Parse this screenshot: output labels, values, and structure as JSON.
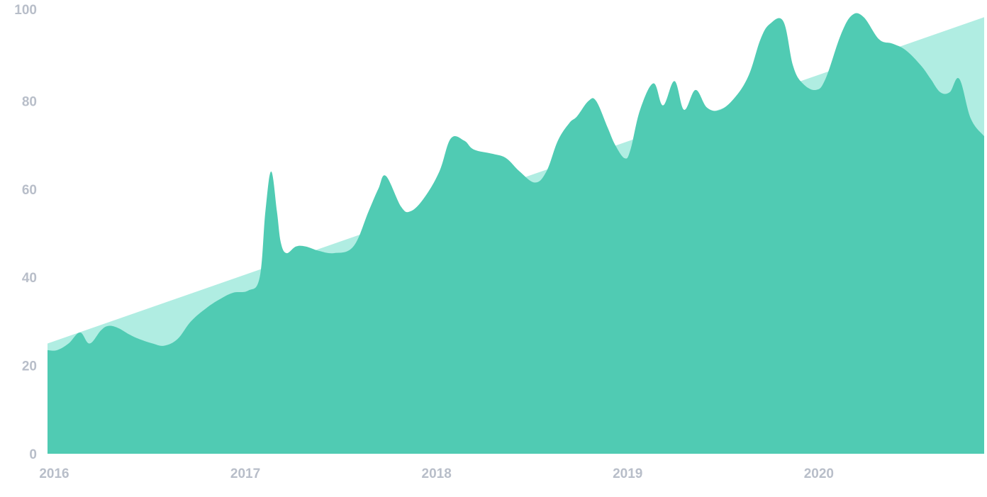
{
  "chart_data": {
    "type": "area",
    "title": "",
    "xlabel": "",
    "ylabel": "",
    "ylim": [
      0,
      100
    ],
    "xlim": [
      2015.95,
      2020.85
    ],
    "y_ticks": [
      "0",
      "20",
      "40",
      "60",
      "80",
      "100"
    ],
    "x_ticks": [
      "2016",
      "2017",
      "2018",
      "2019",
      "2020"
    ],
    "grid": false,
    "legend": "none",
    "colors": {
      "trend_area": "#b0ede2",
      "series_area": "#50cbb3",
      "tick_label": "#b8bec9"
    },
    "series": [
      {
        "role": "trend",
        "x": [
          2015.95,
          2020.85
        ],
        "values": [
          25,
          99
        ]
      },
      {
        "role": "value",
        "x": [
          2015.95,
          2016.0,
          2016.06,
          2016.12,
          2016.17,
          2016.23,
          2016.27,
          2016.32,
          2016.38,
          2016.43,
          2016.5,
          2016.56,
          2016.63,
          2016.7,
          2016.78,
          2016.85,
          2016.92,
          2017.0,
          2017.06,
          2017.09,
          2017.12,
          2017.15,
          2017.17,
          2017.2,
          2017.25,
          2017.3,
          2017.37,
          2017.45,
          2017.55,
          2017.63,
          2017.68,
          2017.72,
          2017.8,
          2017.85,
          2017.92,
          2018.0,
          2018.06,
          2018.13,
          2018.18,
          2018.28,
          2018.35,
          2018.42,
          2018.5,
          2018.56,
          2018.62,
          2018.68,
          2018.72,
          2018.78,
          2018.82,
          2018.88,
          2018.92,
          2018.97,
          2019.0,
          2019.05,
          2019.12,
          2019.17,
          2019.23,
          2019.28,
          2019.34,
          2019.4,
          2019.47,
          2019.55,
          2019.62,
          2019.68,
          2019.73,
          2019.8,
          2019.85,
          2019.9,
          2019.97,
          2020.02,
          2020.1,
          2020.16,
          2020.22,
          2020.3,
          2020.37,
          2020.44,
          2020.52,
          2020.57,
          2020.62,
          2020.67,
          2020.72,
          2020.78,
          2020.85
        ],
        "values": [
          23.5,
          23.5,
          25,
          27.5,
          25,
          28,
          29,
          28.5,
          27,
          26,
          25,
          24.5,
          26,
          30,
          33,
          35,
          36.5,
          37,
          40,
          55,
          64,
          55,
          48,
          45.5,
          47,
          47,
          46,
          45.5,
          47,
          55,
          60,
          63,
          56,
          55,
          58,
          64,
          71.5,
          71,
          69,
          68,
          67,
          64,
          61.5,
          64,
          71,
          75,
          76.5,
          80,
          80,
          74,
          70,
          67,
          69,
          78,
          84,
          79,
          84.5,
          78,
          82.5,
          78.5,
          78,
          81,
          86,
          94,
          97.5,
          98,
          88,
          84,
          82.5,
          85,
          95,
          99.5,
          99,
          94,
          93,
          91.5,
          88,
          85,
          82,
          82,
          85,
          76,
          72
        ]
      }
    ]
  }
}
